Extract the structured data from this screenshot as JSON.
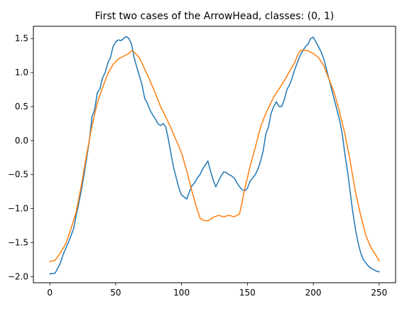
{
  "chart_data": {
    "type": "line",
    "title": "First two cases of the ArrowHead, classes: (0, 1)",
    "xlabel": "",
    "ylabel": "",
    "xlim": [
      -12.5,
      262.5
    ],
    "ylim": [
      -2.09,
      1.68
    ],
    "xticks": [
      0,
      50,
      100,
      150,
      200,
      250
    ],
    "yticks": [
      -2.0,
      -1.5,
      -1.0,
      -0.5,
      0.0,
      0.5,
      1.0,
      1.5
    ],
    "ytick_labels": [
      "−2.0",
      "−1.5",
      "−1.0",
      "−0.5",
      "0.0",
      "0.5",
      "1.0",
      "1.5"
    ],
    "grid": false,
    "legend": "none",
    "series": [
      {
        "color": "#1f77b4",
        "points": [
          [
            0,
            -1.96
          ],
          [
            4,
            -1.95
          ],
          [
            8,
            -1.8
          ],
          [
            10,
            -1.68
          ],
          [
            14,
            -1.5
          ],
          [
            18,
            -1.3
          ],
          [
            20,
            -1.1
          ],
          [
            22,
            -0.92
          ],
          [
            24,
            -0.72
          ],
          [
            26,
            -0.5
          ],
          [
            28,
            -0.25
          ],
          [
            30,
            0.0
          ],
          [
            32,
            0.35
          ],
          [
            34,
            0.45
          ],
          [
            36,
            0.7
          ],
          [
            38,
            0.76
          ],
          [
            40,
            0.92
          ],
          [
            42,
            1.0
          ],
          [
            44,
            1.14
          ],
          [
            46,
            1.22
          ],
          [
            48,
            1.38
          ],
          [
            50,
            1.45
          ],
          [
            52,
            1.48
          ],
          [
            54,
            1.47
          ],
          [
            56,
            1.5
          ],
          [
            58,
            1.53
          ],
          [
            60,
            1.5
          ],
          [
            62,
            1.42
          ],
          [
            64,
            1.22
          ],
          [
            66,
            1.08
          ],
          [
            68,
            0.95
          ],
          [
            70,
            0.82
          ],
          [
            72,
            0.62
          ],
          [
            74,
            0.55
          ],
          [
            76,
            0.45
          ],
          [
            78,
            0.38
          ],
          [
            80,
            0.32
          ],
          [
            82,
            0.25
          ],
          [
            84,
            0.22
          ],
          [
            86,
            0.25
          ],
          [
            88,
            0.2
          ],
          [
            90,
            0.02
          ],
          [
            92,
            -0.2
          ],
          [
            94,
            -0.4
          ],
          [
            96,
            -0.55
          ],
          [
            98,
            -0.7
          ],
          [
            100,
            -0.8
          ],
          [
            102,
            -0.83
          ],
          [
            104,
            -0.86
          ],
          [
            106,
            -0.75
          ],
          [
            108,
            -0.66
          ],
          [
            110,
            -0.62
          ],
          [
            112,
            -0.55
          ],
          [
            114,
            -0.5
          ],
          [
            116,
            -0.42
          ],
          [
            118,
            -0.36
          ],
          [
            120,
            -0.3
          ],
          [
            122,
            -0.45
          ],
          [
            124,
            -0.58
          ],
          [
            126,
            -0.68
          ],
          [
            128,
            -0.6
          ],
          [
            130,
            -0.52
          ],
          [
            132,
            -0.46
          ],
          [
            134,
            -0.47
          ],
          [
            136,
            -0.5
          ],
          [
            138,
            -0.52
          ],
          [
            140,
            -0.55
          ],
          [
            142,
            -0.62
          ],
          [
            144,
            -0.68
          ],
          [
            146,
            -0.72
          ],
          [
            148,
            -0.74
          ],
          [
            150,
            -0.7
          ],
          [
            152,
            -0.6
          ],
          [
            154,
            -0.55
          ],
          [
            156,
            -0.5
          ],
          [
            158,
            -0.42
          ],
          [
            160,
            -0.3
          ],
          [
            162,
            -0.15
          ],
          [
            164,
            0.1
          ],
          [
            166,
            0.2
          ],
          [
            168,
            0.4
          ],
          [
            170,
            0.5
          ],
          [
            172,
            0.57
          ],
          [
            174,
            0.5
          ],
          [
            176,
            0.5
          ],
          [
            178,
            0.6
          ],
          [
            180,
            0.75
          ],
          [
            182,
            0.82
          ],
          [
            184,
            0.92
          ],
          [
            186,
            1.05
          ],
          [
            188,
            1.15
          ],
          [
            190,
            1.25
          ],
          [
            192,
            1.32
          ],
          [
            194,
            1.38
          ],
          [
            196,
            1.42
          ],
          [
            198,
            1.5
          ],
          [
            200,
            1.52
          ],
          [
            202,
            1.45
          ],
          [
            204,
            1.38
          ],
          [
            206,
            1.3
          ],
          [
            208,
            1.2
          ],
          [
            210,
            1.05
          ],
          [
            212,
            0.9
          ],
          [
            214,
            0.75
          ],
          [
            216,
            0.6
          ],
          [
            218,
            0.45
          ],
          [
            220,
            0.3
          ],
          [
            222,
            0.1
          ],
          [
            224,
            -0.2
          ],
          [
            226,
            -0.45
          ],
          [
            228,
            -0.75
          ],
          [
            230,
            -1.05
          ],
          [
            232,
            -1.3
          ],
          [
            234,
            -1.5
          ],
          [
            236,
            -1.65
          ],
          [
            238,
            -1.75
          ],
          [
            240,
            -1.8
          ],
          [
            242,
            -1.85
          ],
          [
            244,
            -1.88
          ],
          [
            246,
            -1.9
          ],
          [
            248,
            -1.92
          ],
          [
            250,
            -1.93
          ]
        ]
      },
      {
        "color": "#ff7f0e",
        "points": [
          [
            0,
            -1.78
          ],
          [
            4,
            -1.76
          ],
          [
            8,
            -1.65
          ],
          [
            12,
            -1.52
          ],
          [
            16,
            -1.3
          ],
          [
            20,
            -1.05
          ],
          [
            24,
            -0.65
          ],
          [
            28,
            -0.2
          ],
          [
            32,
            0.22
          ],
          [
            36,
            0.55
          ],
          [
            40,
            0.78
          ],
          [
            44,
            0.98
          ],
          [
            48,
            1.12
          ],
          [
            52,
            1.2
          ],
          [
            56,
            1.24
          ],
          [
            60,
            1.28
          ],
          [
            62,
            1.32
          ],
          [
            64,
            1.3
          ],
          [
            68,
            1.22
          ],
          [
            72,
            1.05
          ],
          [
            76,
            0.88
          ],
          [
            80,
            0.7
          ],
          [
            84,
            0.5
          ],
          [
            88,
            0.35
          ],
          [
            92,
            0.18
          ],
          [
            96,
            0.0
          ],
          [
            100,
            -0.18
          ],
          [
            104,
            -0.45
          ],
          [
            108,
            -0.75
          ],
          [
            112,
            -1.02
          ],
          [
            114,
            -1.14
          ],
          [
            116,
            -1.17
          ],
          [
            120,
            -1.18
          ],
          [
            124,
            -1.13
          ],
          [
            128,
            -1.1
          ],
          [
            132,
            -1.12
          ],
          [
            136,
            -1.1
          ],
          [
            140,
            -1.12
          ],
          [
            144,
            -1.08
          ],
          [
            146,
            -0.9
          ],
          [
            148,
            -0.7
          ],
          [
            150,
            -0.55
          ],
          [
            152,
            -0.38
          ],
          [
            156,
            -0.1
          ],
          [
            160,
            0.2
          ],
          [
            164,
            0.4
          ],
          [
            168,
            0.56
          ],
          [
            170,
            0.64
          ],
          [
            174,
            0.76
          ],
          [
            178,
            0.88
          ],
          [
            182,
            1.02
          ],
          [
            186,
            1.15
          ],
          [
            188,
            1.25
          ],
          [
            190,
            1.32
          ],
          [
            192,
            1.33
          ],
          [
            196,
            1.32
          ],
          [
            200,
            1.28
          ],
          [
            204,
            1.22
          ],
          [
            208,
            1.1
          ],
          [
            212,
            0.9
          ],
          [
            216,
            0.7
          ],
          [
            220,
            0.42
          ],
          [
            224,
            0.1
          ],
          [
            228,
            -0.3
          ],
          [
            232,
            -0.75
          ],
          [
            236,
            -1.1
          ],
          [
            240,
            -1.4
          ],
          [
            244,
            -1.58
          ],
          [
            248,
            -1.7
          ],
          [
            250,
            -1.77
          ]
        ]
      }
    ]
  }
}
